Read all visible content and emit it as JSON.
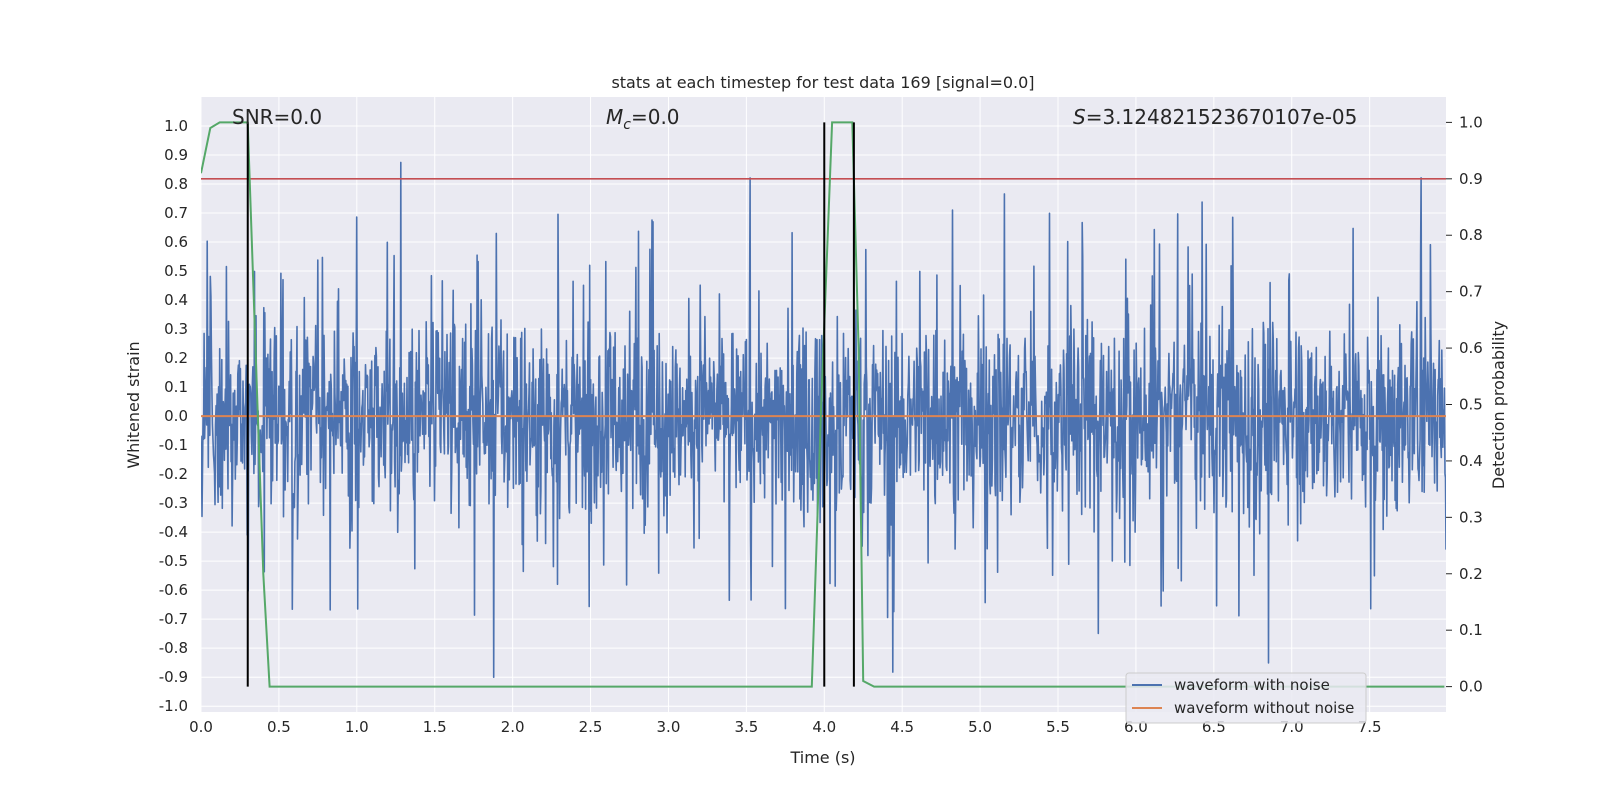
{
  "chart_data": {
    "type": "line",
    "title": "stats at each timestep for test data 169 [signal=0.0]",
    "xlabel": "Time (s)",
    "ylabel_left": "Whitened strain",
    "ylabel_right": "Detection probability",
    "xlim": [
      0.0,
      7.99
    ],
    "ylim_left": [
      -1.02,
      1.1
    ],
    "ylim_right": [
      -0.045,
      1.045
    ],
    "x_ticks": [
      "0.0",
      "0.5",
      "1.0",
      "1.5",
      "2.0",
      "2.5",
      "3.0",
      "3.5",
      "4.0",
      "4.5",
      "5.0",
      "5.5",
      "6.0",
      "6.5",
      "7.0",
      "7.5"
    ],
    "y_ticks_left": [
      "1.0",
      "0.9",
      "0.8",
      "0.7",
      "0.6",
      "0.5",
      "0.4",
      "0.3",
      "0.2",
      "0.1",
      "0.0",
      "-0.1",
      "-0.2",
      "-0.3",
      "-0.4",
      "-0.5",
      "-0.6",
      "-0.7",
      "-0.8",
      "-0.9",
      "-1.0"
    ],
    "y_ticks_right": [
      "1.0",
      "0.9",
      "0.8",
      "0.7",
      "0.6",
      "0.5",
      "0.4",
      "0.3",
      "0.2",
      "0.1",
      "0.0"
    ],
    "annotations": {
      "snr": "SNR=0.0",
      "mc_symbol": "M",
      "mc_sub": "c",
      "mc_value": "=0.0",
      "s_symbol": "S",
      "s_value": "=3.124821523670107e-05"
    },
    "grid": true,
    "legend_position": "lower right",
    "colors": {
      "noise": "#4c72b0",
      "clean": "#dd8452",
      "probability": "#55a868",
      "threshold": "#c44e52",
      "marker": "#000000",
      "axes_bg": "#eaeaf2",
      "grid": "#ffffff"
    },
    "series": [
      {
        "name": "waveform with noise",
        "role": "noisy strain (dense random signal, roughly ±0.35 core with spikes to about ±1.0)",
        "envelope": {
          "typical_abs_max": 0.62,
          "core_abs": 0.35,
          "spike_max": 1.0,
          "spike_min": -0.9
        }
      },
      {
        "name": "waveform without noise",
        "values_const": 0.0
      },
      {
        "name": "",
        "axis": "right",
        "points": [
          [
            0.0,
            0.91
          ],
          [
            0.06,
            0.99
          ],
          [
            0.12,
            1.0
          ],
          [
            0.3,
            1.0
          ],
          [
            0.35,
            0.6
          ],
          [
            0.4,
            0.2
          ],
          [
            0.44,
            0.0
          ],
          [
            3.92,
            0.0
          ],
          [
            3.98,
            0.5
          ],
          [
            4.05,
            1.0
          ],
          [
            4.18,
            1.0
          ],
          [
            4.22,
            0.6
          ],
          [
            4.25,
            0.01
          ],
          [
            4.32,
            0.0
          ],
          [
            7.98,
            0.0
          ]
        ]
      }
    ],
    "threshold_right": 0.9,
    "markers_x": [
      0.3,
      4.0,
      4.19
    ],
    "marker_range_right": [
      0.0,
      1.0
    ],
    "legend": [
      "waveform with noise",
      "waveform without noise"
    ]
  }
}
